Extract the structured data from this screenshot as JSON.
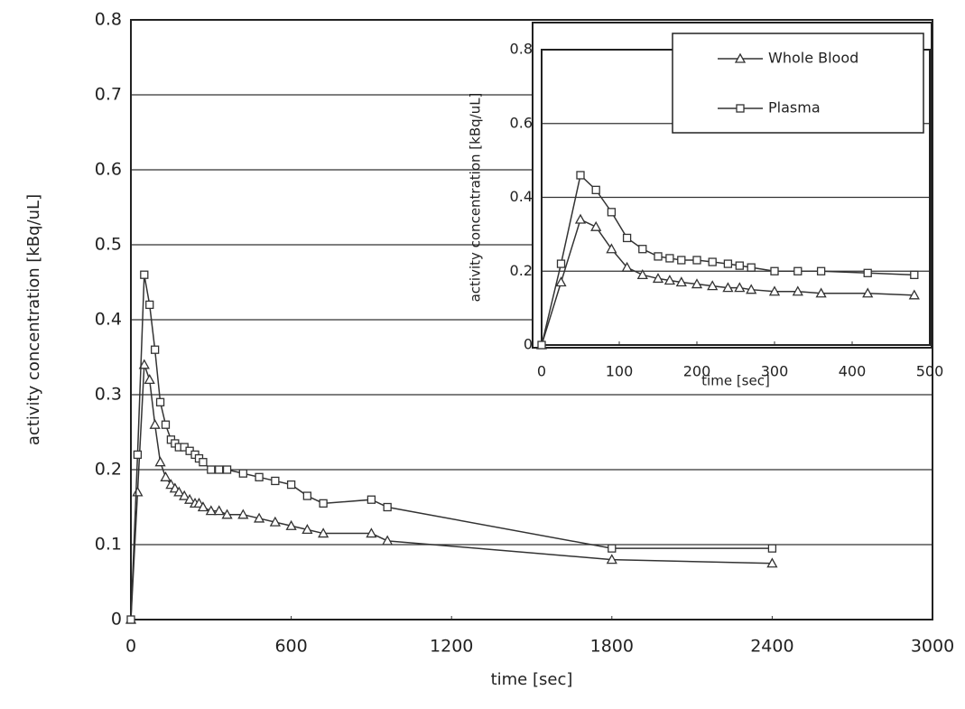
{
  "chart_data": [
    {
      "type": "line",
      "x_label": "time [sec]",
      "y_label": "activity concentration [kBq/uL]",
      "x": [
        0,
        25,
        50,
        70,
        90,
        110,
        130,
        150,
        165,
        180,
        200,
        220,
        240,
        255,
        270,
        300,
        330,
        360,
        420,
        480,
        540,
        600,
        660,
        720,
        900,
        960,
        1800,
        2400
      ],
      "series": [
        {
          "name": "Whole Blood",
          "color": "#333333",
          "marker": "triangle",
          "values": [
            0,
            0.17,
            0.34,
            0.32,
            0.26,
            0.21,
            0.19,
            0.18,
            0.175,
            0.17,
            0.165,
            0.16,
            0.155,
            0.155,
            0.15,
            0.145,
            0.145,
            0.14,
            0.14,
            0.135,
            0.13,
            0.125,
            0.12,
            0.115,
            0.115,
            0.105,
            0.08,
            0.075
          ]
        },
        {
          "name": "Plasma",
          "color": "#333333",
          "marker": "square",
          "values": [
            0,
            0.22,
            0.46,
            0.42,
            0.36,
            0.29,
            0.26,
            0.24,
            0.235,
            0.23,
            0.23,
            0.225,
            0.22,
            0.215,
            0.21,
            0.2,
            0.2,
            0.2,
            0.195,
            0.19,
            0.185,
            0.18,
            0.165,
            0.155,
            0.16,
            0.15,
            0.095,
            0.095
          ]
        }
      ],
      "xlim": [
        0,
        3000
      ],
      "xticks": [
        0,
        600,
        1200,
        1800,
        2400,
        3000
      ],
      "ylim": [
        0,
        0.8
      ],
      "yticks": [
        0,
        0.1,
        0.2,
        0.3,
        0.4,
        0.5,
        0.6,
        0.7,
        0.8
      ],
      "grid": true,
      "legend": false
    },
    {
      "type": "line",
      "x_label": "time [sec]",
      "y_label": "activity concentration [kBq/uL]",
      "x": [
        0,
        25,
        50,
        70,
        90,
        110,
        130,
        150,
        165,
        180,
        200,
        220,
        240,
        255,
        270,
        300,
        330,
        360,
        420,
        480
      ],
      "series": [
        {
          "name": "Whole Blood",
          "color": "#333333",
          "marker": "triangle",
          "values": [
            0,
            0.17,
            0.34,
            0.32,
            0.26,
            0.21,
            0.19,
            0.18,
            0.175,
            0.17,
            0.165,
            0.16,
            0.155,
            0.155,
            0.15,
            0.145,
            0.145,
            0.14,
            0.14,
            0.135
          ]
        },
        {
          "name": "Plasma",
          "color": "#333333",
          "marker": "square",
          "values": [
            0,
            0.22,
            0.46,
            0.42,
            0.36,
            0.29,
            0.26,
            0.24,
            0.235,
            0.23,
            0.23,
            0.225,
            0.22,
            0.215,
            0.21,
            0.2,
            0.2,
            0.2,
            0.195,
            0.19
          ]
        }
      ],
      "xlim": [
        0,
        500
      ],
      "xticks": [
        0,
        100,
        200,
        300,
        400,
        500
      ],
      "ylim": [
        0,
        0.8
      ],
      "yticks": [
        0,
        0.2,
        0.4,
        0.6,
        0.8
      ],
      "grid": true,
      "legend": "upper right"
    }
  ]
}
